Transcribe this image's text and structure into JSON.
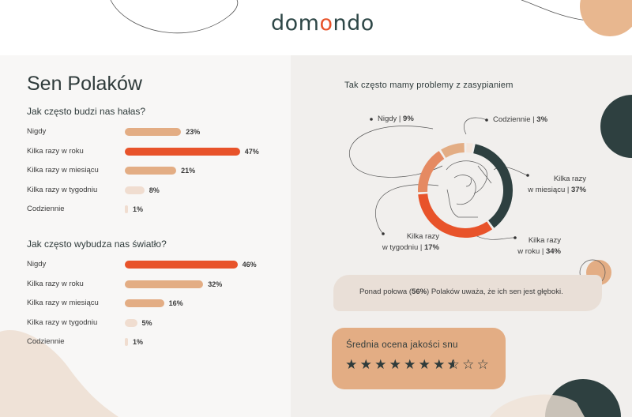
{
  "brand": {
    "name_prefix": "dom",
    "name_accent": "o",
    "name_suffix": "ndo"
  },
  "title": "Sen Polaków",
  "section1": {
    "question": "Jak często budzi nas hałas?",
    "rows": [
      {
        "label": "Nigdy",
        "pct": "23%",
        "value": 23,
        "color": "#e3ad84"
      },
      {
        "label": "Kilka razy w roku",
        "pct": "47%",
        "value": 47,
        "color": "#e8532a"
      },
      {
        "label": "Kilka razy w miesiącu",
        "pct": "21%",
        "value": 21,
        "color": "#e3ad84"
      },
      {
        "label": "Kilka razy w tygodniu",
        "pct": "8%",
        "value": 8,
        "color": "#f0ddd0"
      },
      {
        "label": "Codziennie",
        "pct": "1%",
        "value": 1,
        "color": "#f0ddd0"
      }
    ]
  },
  "section2": {
    "question": "Jak często wybudza nas światło?",
    "rows": [
      {
        "label": "Nigdy",
        "pct": "46%",
        "value": 46,
        "color": "#e8532a"
      },
      {
        "label": "Kilka razy w roku",
        "pct": "32%",
        "value": 32,
        "color": "#e3ad84"
      },
      {
        "label": "Kilka razy w miesiącu",
        "pct": "16%",
        "value": 16,
        "color": "#e3ad84"
      },
      {
        "label": "Kilka razy w tygodniu",
        "pct": "5%",
        "value": 5,
        "color": "#f0ddd0"
      },
      {
        "label": "Codziennie",
        "pct": "1%",
        "value": 1,
        "color": "#f0ddd0"
      }
    ]
  },
  "donut": {
    "title": "Tak często mamy problemy z zasypianiem",
    "labels": {
      "nigdy": {
        "name": "Nigdy |",
        "pct": "9%"
      },
      "codziennie": {
        "name": "Codziennie |",
        "pct": "3%"
      },
      "miesiac": {
        "name1": "Kilka razy",
        "name2": "w miesiącu |",
        "pct": "37%"
      },
      "rok": {
        "name1": "Kilka razy",
        "name2": "w roku |",
        "pct": "34%"
      },
      "tydzien": {
        "name1": "Kilka razy",
        "name2": "w tygodniu |",
        "pct": "17%"
      }
    }
  },
  "note": {
    "before": "Ponad połowa (",
    "bold": "56%",
    "after": ") Polaków uważa, że ich sen jest głęboki."
  },
  "rating": {
    "title": "Średnia ocena jakości snu",
    "score": 7.5,
    "max": 10
  },
  "chart_data": [
    {
      "type": "bar",
      "title": "Jak często budzi nas hałas?",
      "categories": [
        "Nigdy",
        "Kilka razy w roku",
        "Kilka razy w miesiącu",
        "Kilka razy w tygodniu",
        "Codziennie"
      ],
      "values": [
        23,
        47,
        21,
        8,
        1
      ]
    },
    {
      "type": "bar",
      "title": "Jak często wybudza nas światło?",
      "categories": [
        "Nigdy",
        "Kilka razy w roku",
        "Kilka razy w miesiącu",
        "Kilka razy w tygodniu",
        "Codziennie"
      ],
      "values": [
        46,
        32,
        16,
        5,
        1
      ]
    },
    {
      "type": "pie",
      "title": "Tak często mamy problemy z zasypianiem",
      "categories": [
        "Codziennie",
        "Kilka razy w miesiącu",
        "Kilka razy w roku",
        "Kilka razy w tygodniu",
        "Nigdy"
      ],
      "values": [
        3,
        37,
        34,
        17,
        9
      ],
      "colors": [
        "#f4e6dc",
        "#2e4040",
        "#e8532a",
        "#e58a62",
        "#e3ad84"
      ]
    }
  ]
}
